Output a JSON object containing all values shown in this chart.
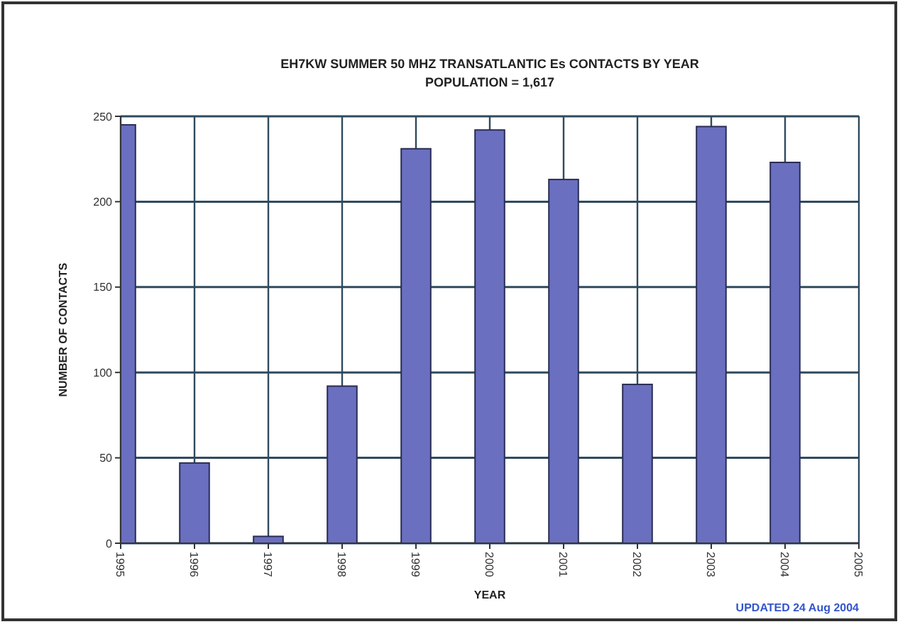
{
  "chart_data": {
    "type": "bar",
    "title": "EH7KW SUMMER 50 MHZ TRANSATLANTIC Es CONTACTS BY YEAR",
    "subtitle": "POPULATION = 1,617",
    "xlabel": "YEAR",
    "ylabel": "NUMBER OF CONTACTS",
    "x": [
      1995,
      1996,
      1997,
      1998,
      1999,
      2000,
      2001,
      2002,
      2003,
      2004
    ],
    "values": [
      245,
      47,
      4,
      92,
      231,
      242,
      213,
      93,
      244,
      223
    ],
    "color": "#6a6fbf",
    "xlim": [
      1995,
      2005
    ],
    "xticks": [
      1995,
      1996,
      1997,
      1998,
      1999,
      2000,
      2001,
      2002,
      2003,
      2004,
      2005
    ],
    "ylim": [
      0,
      250
    ],
    "yticks": [
      0,
      50,
      100,
      150,
      200,
      250
    ],
    "grid": true,
    "annotations": [
      "UPDATED 24 Aug 2004"
    ]
  }
}
